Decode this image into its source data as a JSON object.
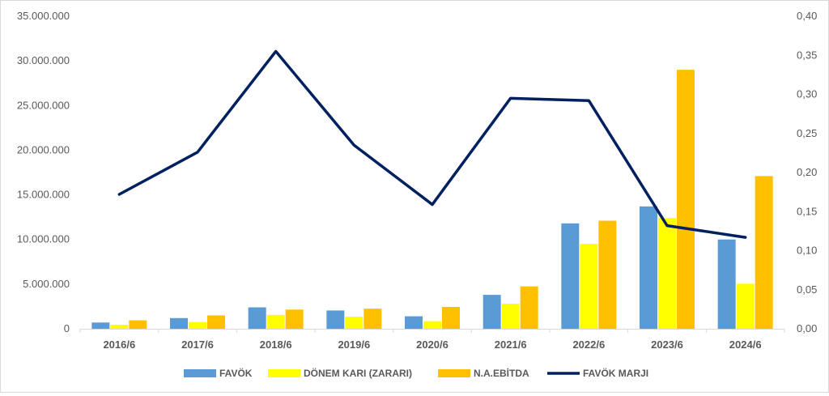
{
  "chart_data": {
    "type": "bar",
    "categories": [
      "2016/6",
      "2017/6",
      "2018/6",
      "2019/6",
      "2020/6",
      "2021/6",
      "2022/6",
      "2023/6",
      "2024/6"
    ],
    "series": [
      {
        "name": "FAVÖK",
        "type": "bar",
        "axis": "left",
        "color": "#5b9bd5",
        "values": [
          700000,
          1200000,
          2400000,
          2050000,
          1400000,
          3800000,
          11800000,
          13700000,
          10000000
        ]
      },
      {
        "name": "DÖNEM KARI (ZARARI)",
        "type": "bar",
        "axis": "left",
        "color": "#ffff00",
        "values": [
          450000,
          750000,
          1550000,
          1350000,
          850000,
          2800000,
          9500000,
          12400000,
          5050000
        ]
      },
      {
        "name": "N.A.EBİTDA",
        "type": "bar",
        "axis": "left",
        "color": "#ffc000",
        "values": [
          950000,
          1500000,
          2150000,
          2250000,
          2450000,
          4750000,
          12100000,
          29000000,
          17100000
        ]
      },
      {
        "name": "FAVÖK MARJI",
        "type": "line",
        "axis": "right",
        "color": "#002060",
        "values": [
          0.172,
          0.226,
          0.355,
          0.235,
          0.159,
          0.295,
          0.292,
          0.132,
          0.117
        ]
      }
    ],
    "y_left": {
      "min": 0,
      "max": 35000000,
      "step": 5000000,
      "tick_labels": [
        "0",
        "5.000.000",
        "10.000.000",
        "15.000.000",
        "20.000.000",
        "25.000.000",
        "30.000.000",
        "35.000.000"
      ]
    },
    "y_right": {
      "min": 0,
      "max": 0.4,
      "step": 0.05,
      "tick_labels": [
        "0,00",
        "0,05",
        "0,10",
        "0,15",
        "0,20",
        "0,25",
        "0,30",
        "0,35",
        "0,40"
      ]
    },
    "grid": false,
    "legend_position": "bottom",
    "legend": [
      "FAVÖK",
      "DÖNEM KARI (ZARARI)",
      "N.A.EBİTDA",
      "FAVÖK MARJI"
    ]
  }
}
